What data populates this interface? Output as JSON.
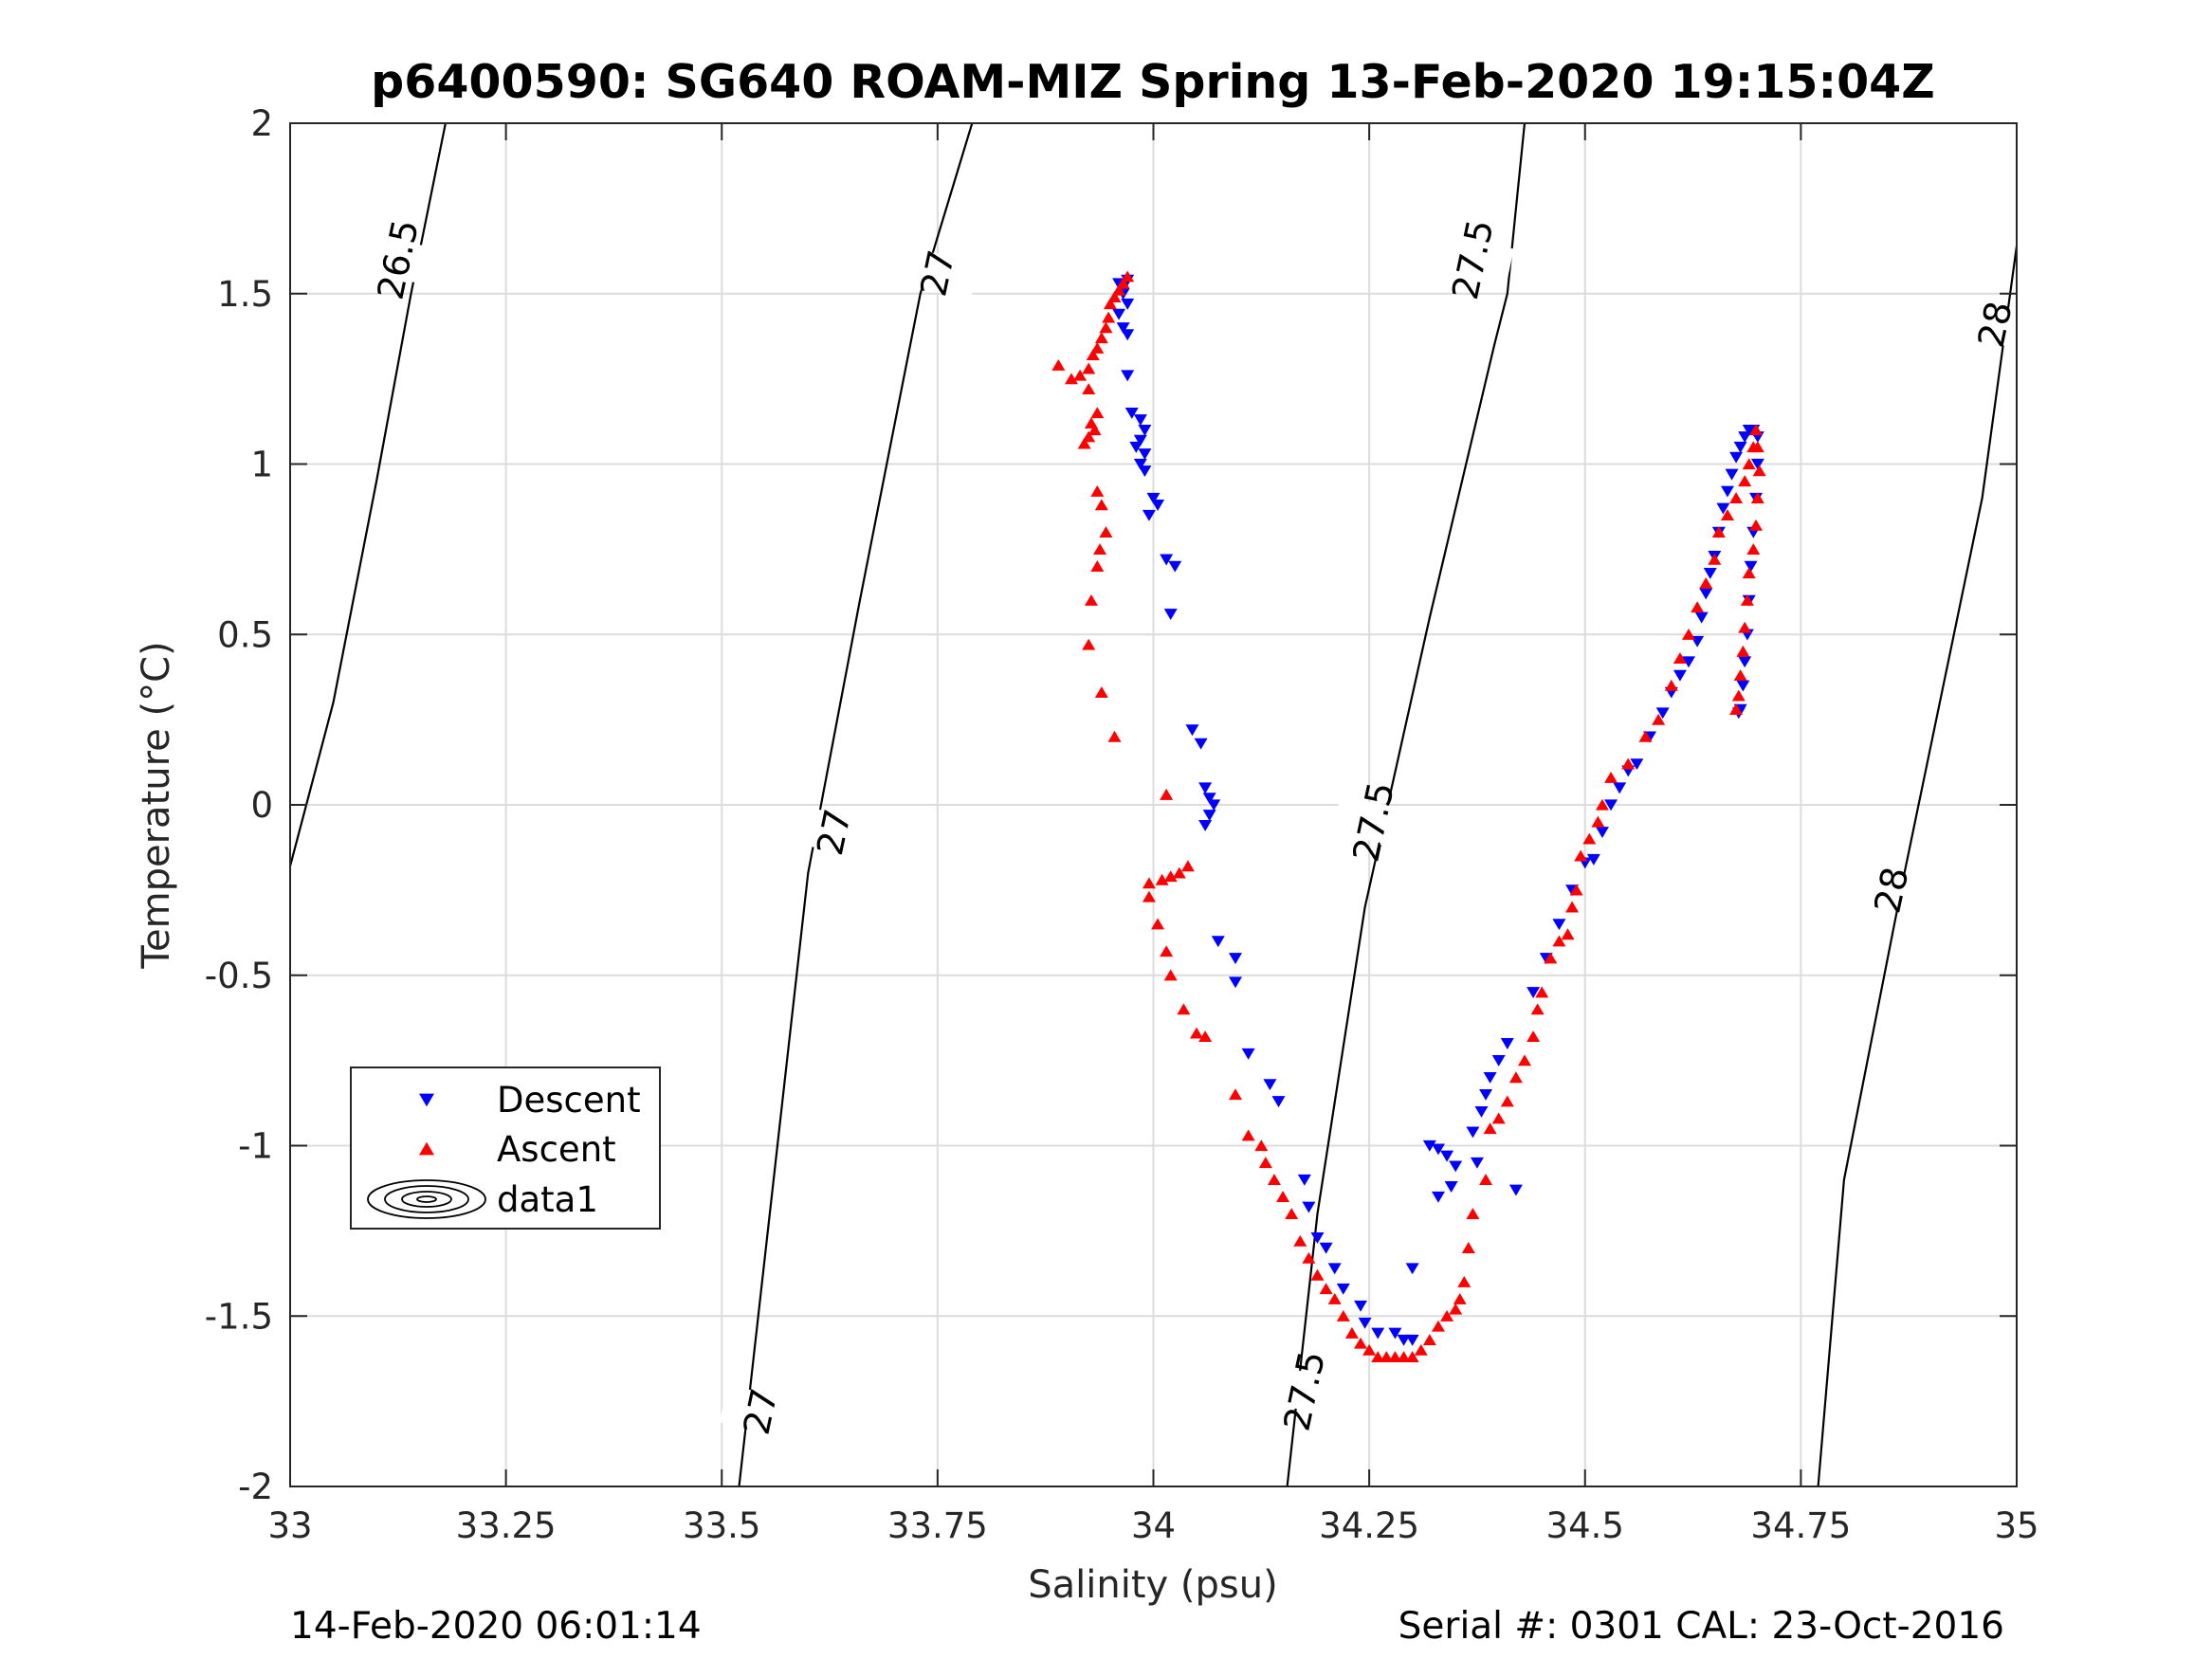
{
  "chart_data": {
    "type": "scatter",
    "title": "p6400590: SG640 ROAM-MIZ Spring 13-Feb-2020 19:15:04Z",
    "xlabel": "Salinity (psu)",
    "ylabel": "Temperature (°C)",
    "xlim": [
      33,
      35
    ],
    "ylim": [
      -2,
      2
    ],
    "x_ticks": [
      33,
      33.25,
      33.5,
      33.75,
      34,
      34.25,
      34.5,
      34.75,
      35
    ],
    "x_tick_labels": [
      "33",
      "33.25",
      "33.5",
      "33.75",
      "34",
      "34.25",
      "34.5",
      "34.75",
      "35"
    ],
    "y_ticks": [
      -2,
      -1.5,
      -1,
      -0.5,
      0,
      0.5,
      1,
      1.5,
      2
    ],
    "y_tick_labels": [
      "-2",
      "-1.5",
      "-1",
      "-0.5",
      "0",
      "0.5",
      "1",
      "1.5",
      "2"
    ],
    "grid": true,
    "legend": {
      "placement": "lower-left",
      "entries": [
        "Descent",
        "Ascent",
        "data1"
      ]
    },
    "contours": [
      {
        "level": 26.5,
        "label": "26.5",
        "points": [
          [
            33.0,
            -0.18
          ],
          [
            33.05,
            0.3
          ],
          [
            33.1,
            0.95
          ],
          [
            33.14,
            1.5
          ],
          [
            33.18,
            2.0
          ]
        ]
      },
      {
        "level": 27,
        "label": "27",
        "points": [
          [
            33.52,
            -2.0
          ],
          [
            33.56,
            -1.1
          ],
          [
            33.6,
            -0.2
          ],
          [
            33.66,
            0.6
          ],
          [
            33.73,
            1.5
          ],
          [
            33.79,
            2.0
          ]
        ]
      },
      {
        "level": 27.5,
        "label": "27.5",
        "points": [
          [
            34.155,
            -2.0
          ],
          [
            34.19,
            -1.2
          ],
          [
            34.245,
            -0.3
          ],
          [
            34.32,
            0.55
          ],
          [
            34.395,
            1.35
          ],
          [
            34.41,
            1.5
          ],
          [
            34.43,
            2.0
          ]
        ]
      },
      {
        "level": 28,
        "label": "28",
        "points": [
          [
            34.77,
            -2.0
          ],
          [
            34.8,
            -1.1
          ],
          [
            34.87,
            -0.2
          ],
          [
            34.96,
            0.9
          ],
          [
            35.0,
            1.64
          ]
        ]
      }
    ],
    "contour_labels": [
      {
        "text": "26.5",
        "x": 33.125,
        "y": 1.6
      },
      {
        "text": "27",
        "x": 33.75,
        "y": 1.56
      },
      {
        "text": "27",
        "x": 33.63,
        "y": -0.08
      },
      {
        "text": "27",
        "x": 33.545,
        "y": -1.78
      },
      {
        "text": "27.5",
        "x": 34.37,
        "y": 1.6
      },
      {
        "text": "27.5",
        "x": 34.255,
        "y": -0.05
      },
      {
        "text": "27.5",
        "x": 34.175,
        "y": -1.72
      },
      {
        "text": "28",
        "x": 34.975,
        "y": 1.41
      },
      {
        "text": "28",
        "x": 34.855,
        "y": -0.25
      }
    ],
    "series": [
      {
        "name": "Descent",
        "marker": "triangle-down",
        "color": "#0000ff",
        "points": [
          [
            33.96,
            1.53
          ],
          [
            33.97,
            1.54
          ],
          [
            33.965,
            1.5
          ],
          [
            33.97,
            1.47
          ],
          [
            33.96,
            1.44
          ],
          [
            33.965,
            1.4
          ],
          [
            33.97,
            1.38
          ],
          [
            33.97,
            1.26
          ],
          [
            33.975,
            1.15
          ],
          [
            33.985,
            1.13
          ],
          [
            33.99,
            1.1
          ],
          [
            33.985,
            1.07
          ],
          [
            33.98,
            1.05
          ],
          [
            33.99,
            1.03
          ],
          [
            33.985,
            1.0
          ],
          [
            33.99,
            0.98
          ],
          [
            34.0,
            0.9
          ],
          [
            34.005,
            0.88
          ],
          [
            33.995,
            0.85
          ],
          [
            34.015,
            0.72
          ],
          [
            34.025,
            0.7
          ],
          [
            34.02,
            0.56
          ],
          [
            34.045,
            0.22
          ],
          [
            34.055,
            0.18
          ],
          [
            34.06,
            0.05
          ],
          [
            34.065,
            0.02
          ],
          [
            34.07,
            0.0
          ],
          [
            34.065,
            -0.03
          ],
          [
            34.06,
            -0.06
          ],
          [
            34.075,
            -0.4
          ],
          [
            34.095,
            -0.45
          ],
          [
            34.095,
            -0.52
          ],
          [
            34.11,
            -0.73
          ],
          [
            34.135,
            -0.82
          ],
          [
            34.145,
            -0.87
          ],
          [
            34.175,
            -1.1
          ],
          [
            34.18,
            -1.18
          ],
          [
            34.19,
            -1.27
          ],
          [
            34.2,
            -1.3
          ],
          [
            34.21,
            -1.36
          ],
          [
            34.22,
            -1.42
          ],
          [
            34.24,
            -1.47
          ],
          [
            34.245,
            -1.52
          ],
          [
            34.26,
            -1.55
          ],
          [
            34.28,
            -1.55
          ],
          [
            34.29,
            -1.57
          ],
          [
            34.3,
            -1.57
          ],
          [
            34.3,
            -1.36
          ],
          [
            34.32,
            -1.0
          ],
          [
            34.33,
            -1.01
          ],
          [
            34.34,
            -1.03
          ],
          [
            34.35,
            -1.06
          ],
          [
            34.345,
            -1.12
          ],
          [
            34.33,
            -1.15
          ],
          [
            34.375,
            -1.05
          ],
          [
            34.42,
            -1.13
          ],
          [
            34.37,
            -0.96
          ],
          [
            34.38,
            -0.9
          ],
          [
            34.385,
            -0.85
          ],
          [
            34.39,
            -0.8
          ],
          [
            34.4,
            -0.75
          ],
          [
            34.41,
            -0.7
          ],
          [
            34.44,
            -0.55
          ],
          [
            34.455,
            -0.45
          ],
          [
            34.47,
            -0.35
          ],
          [
            34.485,
            -0.25
          ],
          [
            34.5,
            -0.17
          ],
          [
            34.51,
            -0.16
          ],
          [
            34.52,
            -0.08
          ],
          [
            34.53,
            0.0
          ],
          [
            34.54,
            0.05
          ],
          [
            34.55,
            0.1
          ],
          [
            34.56,
            0.12
          ],
          [
            34.575,
            0.2
          ],
          [
            34.59,
            0.27
          ],
          [
            34.6,
            0.33
          ],
          [
            34.61,
            0.38
          ],
          [
            34.62,
            0.42
          ],
          [
            34.63,
            0.48
          ],
          [
            34.635,
            0.55
          ],
          [
            34.64,
            0.62
          ],
          [
            34.645,
            0.68
          ],
          [
            34.65,
            0.73
          ],
          [
            34.655,
            0.8
          ],
          [
            34.66,
            0.87
          ],
          [
            34.665,
            0.92
          ],
          [
            34.67,
            0.97
          ],
          [
            34.675,
            1.02
          ],
          [
            34.68,
            1.05
          ],
          [
            34.685,
            1.08
          ],
          [
            34.69,
            1.1
          ],
          [
            34.695,
            1.1
          ],
          [
            34.7,
            1.08
          ],
          [
            34.7,
            1.0
          ],
          [
            34.698,
            0.9
          ],
          [
            34.695,
            0.8
          ],
          [
            34.692,
            0.7
          ],
          [
            34.69,
            0.6
          ],
          [
            34.688,
            0.5
          ],
          [
            34.685,
            0.42
          ],
          [
            34.683,
            0.35
          ],
          [
            34.68,
            0.28
          ],
          [
            34.678,
            0.27
          ]
        ]
      },
      {
        "name": "Ascent",
        "marker": "triangle-up",
        "color": "#ff0000",
        "points": [
          [
            33.97,
            1.55
          ],
          [
            33.965,
            1.53
          ],
          [
            33.96,
            1.51
          ],
          [
            33.955,
            1.49
          ],
          [
            33.95,
            1.47
          ],
          [
            33.948,
            1.43
          ],
          [
            33.945,
            1.4
          ],
          [
            33.94,
            1.37
          ],
          [
            33.935,
            1.34
          ],
          [
            33.93,
            1.32
          ],
          [
            33.925,
            1.28
          ],
          [
            33.915,
            1.26
          ],
          [
            33.905,
            1.25
          ],
          [
            33.89,
            1.29
          ],
          [
            33.925,
            1.22
          ],
          [
            33.935,
            1.15
          ],
          [
            33.928,
            1.12
          ],
          [
            33.932,
            1.1
          ],
          [
            33.925,
            1.08
          ],
          [
            33.92,
            1.06
          ],
          [
            33.935,
            0.92
          ],
          [
            33.94,
            0.88
          ],
          [
            33.945,
            0.8
          ],
          [
            33.938,
            0.75
          ],
          [
            33.935,
            0.7
          ],
          [
            33.928,
            0.6
          ],
          [
            33.925,
            0.47
          ],
          [
            33.94,
            0.33
          ],
          [
            33.955,
            0.2
          ],
          [
            34.015,
            0.03
          ],
          [
            34.04,
            -0.18
          ],
          [
            34.03,
            -0.2
          ],
          [
            34.02,
            -0.21
          ],
          [
            34.01,
            -0.22
          ],
          [
            33.995,
            -0.23
          ],
          [
            33.995,
            -0.27
          ],
          [
            34.005,
            -0.35
          ],
          [
            34.015,
            -0.43
          ],
          [
            34.02,
            -0.5
          ],
          [
            34.035,
            -0.6
          ],
          [
            34.05,
            -0.67
          ],
          [
            34.06,
            -0.68
          ],
          [
            34.095,
            -0.85
          ],
          [
            34.11,
            -0.97
          ],
          [
            34.125,
            -1.0
          ],
          [
            34.13,
            -1.05
          ],
          [
            34.14,
            -1.1
          ],
          [
            34.15,
            -1.15
          ],
          [
            34.16,
            -1.2
          ],
          [
            34.17,
            -1.28
          ],
          [
            34.18,
            -1.33
          ],
          [
            34.19,
            -1.38
          ],
          [
            34.2,
            -1.42
          ],
          [
            34.21,
            -1.45
          ],
          [
            34.22,
            -1.5
          ],
          [
            34.23,
            -1.55
          ],
          [
            34.24,
            -1.58
          ],
          [
            34.25,
            -1.6
          ],
          [
            34.26,
            -1.62
          ],
          [
            34.27,
            -1.62
          ],
          [
            34.28,
            -1.62
          ],
          [
            34.29,
            -1.62
          ],
          [
            34.3,
            -1.62
          ],
          [
            34.31,
            -1.6
          ],
          [
            34.32,
            -1.57
          ],
          [
            34.33,
            -1.53
          ],
          [
            34.34,
            -1.5
          ],
          [
            34.35,
            -1.48
          ],
          [
            34.355,
            -1.45
          ],
          [
            34.36,
            -1.4
          ],
          [
            34.365,
            -1.3
          ],
          [
            34.37,
            -1.2
          ],
          [
            34.385,
            -1.1
          ],
          [
            34.39,
            -0.95
          ],
          [
            34.4,
            -0.92
          ],
          [
            34.41,
            -0.87
          ],
          [
            34.42,
            -0.8
          ],
          [
            34.43,
            -0.75
          ],
          [
            34.44,
            -0.68
          ],
          [
            34.445,
            -0.6
          ],
          [
            34.45,
            -0.55
          ],
          [
            34.46,
            -0.45
          ],
          [
            34.47,
            -0.4
          ],
          [
            34.48,
            -0.38
          ],
          [
            34.485,
            -0.3
          ],
          [
            34.49,
            -0.25
          ],
          [
            34.495,
            -0.15
          ],
          [
            34.505,
            -0.1
          ],
          [
            34.515,
            -0.05
          ],
          [
            34.52,
            0.0
          ],
          [
            34.53,
            0.08
          ],
          [
            34.55,
            0.12
          ],
          [
            34.57,
            0.2
          ],
          [
            34.585,
            0.25
          ],
          [
            34.6,
            0.35
          ],
          [
            34.61,
            0.43
          ],
          [
            34.62,
            0.5
          ],
          [
            34.63,
            0.58
          ],
          [
            34.64,
            0.65
          ],
          [
            34.65,
            0.72
          ],
          [
            34.655,
            0.8
          ],
          [
            34.665,
            0.85
          ],
          [
            34.675,
            0.9
          ],
          [
            34.685,
            0.95
          ],
          [
            34.69,
            1.0
          ],
          [
            34.695,
            1.05
          ],
          [
            34.698,
            1.1
          ],
          [
            34.7,
            1.05
          ],
          [
            34.702,
            0.98
          ],
          [
            34.7,
            0.9
          ],
          [
            34.698,
            0.82
          ],
          [
            34.695,
            0.75
          ],
          [
            34.69,
            0.68
          ],
          [
            34.688,
            0.6
          ],
          [
            34.685,
            0.52
          ],
          [
            34.683,
            0.45
          ],
          [
            34.68,
            0.38
          ],
          [
            34.678,
            0.32
          ],
          [
            34.675,
            0.28
          ]
        ]
      }
    ]
  },
  "footer": {
    "left": "14-Feb-2020 06:01:14",
    "right": "Serial #: 0301  CAL: 23-Oct-2016"
  }
}
